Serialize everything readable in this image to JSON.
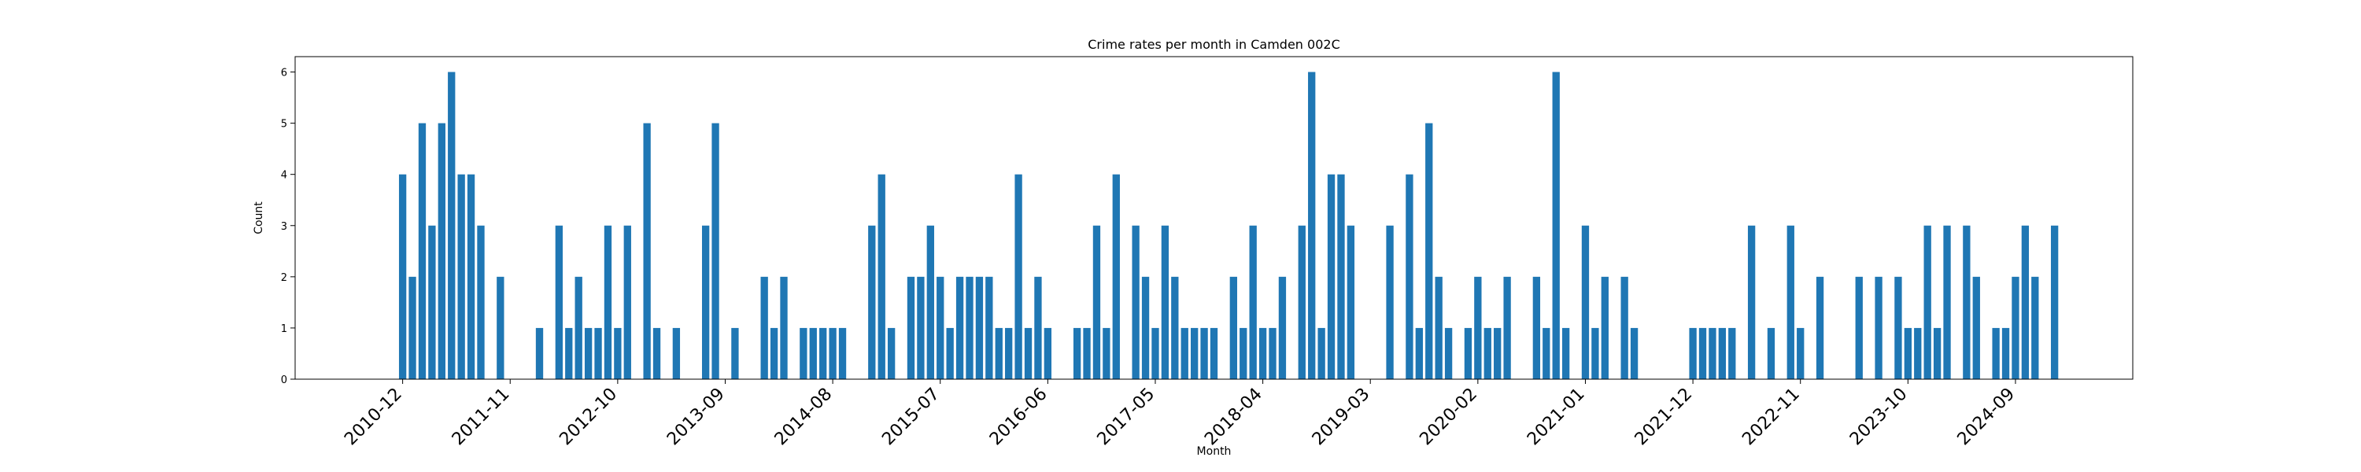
{
  "chart_data": {
    "type": "bar",
    "title": "Crime rates per month in Camden 002C",
    "xlabel": "Month",
    "ylabel": "Count",
    "ylim": [
      0,
      6.3
    ],
    "yticks": [
      0,
      1,
      2,
      3,
      4,
      5,
      6
    ],
    "xlim": [
      "2010-01",
      "2025-09"
    ],
    "xticks": [
      "2010-12",
      "2011-11",
      "2012-10",
      "2013-09",
      "2014-08",
      "2015-07",
      "2016-06",
      "2017-05",
      "2018-04",
      "2019-03",
      "2020-02",
      "2021-01",
      "2021-12",
      "2022-11",
      "2023-10",
      "2024-09"
    ],
    "grid": false,
    "bar_color": "#1f77b4",
    "points": [
      {
        "x": "2010-12",
        "y": 4
      },
      {
        "x": "2011-01",
        "y": 2
      },
      {
        "x": "2011-02",
        "y": 5
      },
      {
        "x": "2011-03",
        "y": 3
      },
      {
        "x": "2011-04",
        "y": 5
      },
      {
        "x": "2011-05",
        "y": 6
      },
      {
        "x": "2011-06",
        "y": 4
      },
      {
        "x": "2011-07",
        "y": 4
      },
      {
        "x": "2011-08",
        "y": 3
      },
      {
        "x": "2011-10",
        "y": 2
      },
      {
        "x": "2012-02",
        "y": 1
      },
      {
        "x": "2012-04",
        "y": 3
      },
      {
        "x": "2012-05",
        "y": 1
      },
      {
        "x": "2012-06",
        "y": 2
      },
      {
        "x": "2012-07",
        "y": 1
      },
      {
        "x": "2012-08",
        "y": 1
      },
      {
        "x": "2012-09",
        "y": 3
      },
      {
        "x": "2012-10",
        "y": 1
      },
      {
        "x": "2012-11",
        "y": 3
      },
      {
        "x": "2013-01",
        "y": 5
      },
      {
        "x": "2013-02",
        "y": 1
      },
      {
        "x": "2013-04",
        "y": 1
      },
      {
        "x": "2013-07",
        "y": 3
      },
      {
        "x": "2013-08",
        "y": 5
      },
      {
        "x": "2013-10",
        "y": 1
      },
      {
        "x": "2014-01",
        "y": 2
      },
      {
        "x": "2014-02",
        "y": 1
      },
      {
        "x": "2014-03",
        "y": 2
      },
      {
        "x": "2014-05",
        "y": 1
      },
      {
        "x": "2014-06",
        "y": 1
      },
      {
        "x": "2014-07",
        "y": 1
      },
      {
        "x": "2014-08",
        "y": 1
      },
      {
        "x": "2014-09",
        "y": 1
      },
      {
        "x": "2014-12",
        "y": 3
      },
      {
        "x": "2015-01",
        "y": 4
      },
      {
        "x": "2015-02",
        "y": 1
      },
      {
        "x": "2015-04",
        "y": 2
      },
      {
        "x": "2015-05",
        "y": 2
      },
      {
        "x": "2015-06",
        "y": 3
      },
      {
        "x": "2015-07",
        "y": 2
      },
      {
        "x": "2015-08",
        "y": 1
      },
      {
        "x": "2015-09",
        "y": 2
      },
      {
        "x": "2015-10",
        "y": 2
      },
      {
        "x": "2015-11",
        "y": 2
      },
      {
        "x": "2015-12",
        "y": 2
      },
      {
        "x": "2016-01",
        "y": 1
      },
      {
        "x": "2016-02",
        "y": 1
      },
      {
        "x": "2016-03",
        "y": 4
      },
      {
        "x": "2016-04",
        "y": 1
      },
      {
        "x": "2016-05",
        "y": 2
      },
      {
        "x": "2016-06",
        "y": 1
      },
      {
        "x": "2016-09",
        "y": 1
      },
      {
        "x": "2016-10",
        "y": 1
      },
      {
        "x": "2016-11",
        "y": 3
      },
      {
        "x": "2016-12",
        "y": 1
      },
      {
        "x": "2017-01",
        "y": 4
      },
      {
        "x": "2017-03",
        "y": 3
      },
      {
        "x": "2017-04",
        "y": 2
      },
      {
        "x": "2017-05",
        "y": 1
      },
      {
        "x": "2017-06",
        "y": 3
      },
      {
        "x": "2017-07",
        "y": 2
      },
      {
        "x": "2017-08",
        "y": 1
      },
      {
        "x": "2017-09",
        "y": 1
      },
      {
        "x": "2017-10",
        "y": 1
      },
      {
        "x": "2017-11",
        "y": 1
      },
      {
        "x": "2018-01",
        "y": 2
      },
      {
        "x": "2018-02",
        "y": 1
      },
      {
        "x": "2018-03",
        "y": 3
      },
      {
        "x": "2018-04",
        "y": 1
      },
      {
        "x": "2018-05",
        "y": 1
      },
      {
        "x": "2018-06",
        "y": 2
      },
      {
        "x": "2018-08",
        "y": 3
      },
      {
        "x": "2018-09",
        "y": 6
      },
      {
        "x": "2018-10",
        "y": 1
      },
      {
        "x": "2018-11",
        "y": 4
      },
      {
        "x": "2018-12",
        "y": 4
      },
      {
        "x": "2019-01",
        "y": 3
      },
      {
        "x": "2019-05",
        "y": 3
      },
      {
        "x": "2019-07",
        "y": 4
      },
      {
        "x": "2019-08",
        "y": 1
      },
      {
        "x": "2019-09",
        "y": 5
      },
      {
        "x": "2019-10",
        "y": 2
      },
      {
        "x": "2019-11",
        "y": 1
      },
      {
        "x": "2020-01",
        "y": 1
      },
      {
        "x": "2020-02",
        "y": 2
      },
      {
        "x": "2020-03",
        "y": 1
      },
      {
        "x": "2020-04",
        "y": 1
      },
      {
        "x": "2020-05",
        "y": 2
      },
      {
        "x": "2020-08",
        "y": 2
      },
      {
        "x": "2020-09",
        "y": 1
      },
      {
        "x": "2020-10",
        "y": 6
      },
      {
        "x": "2020-11",
        "y": 1
      },
      {
        "x": "2021-01",
        "y": 3
      },
      {
        "x": "2021-02",
        "y": 1
      },
      {
        "x": "2021-03",
        "y": 2
      },
      {
        "x": "2021-05",
        "y": 2
      },
      {
        "x": "2021-06",
        "y": 1
      },
      {
        "x": "2021-12",
        "y": 1
      },
      {
        "x": "2022-01",
        "y": 1
      },
      {
        "x": "2022-02",
        "y": 1
      },
      {
        "x": "2022-03",
        "y": 1
      },
      {
        "x": "2022-04",
        "y": 1
      },
      {
        "x": "2022-06",
        "y": 3
      },
      {
        "x": "2022-08",
        "y": 1
      },
      {
        "x": "2022-10",
        "y": 3
      },
      {
        "x": "2022-11",
        "y": 1
      },
      {
        "x": "2023-01",
        "y": 2
      },
      {
        "x": "2023-05",
        "y": 2
      },
      {
        "x": "2023-07",
        "y": 2
      },
      {
        "x": "2023-09",
        "y": 2
      },
      {
        "x": "2023-10",
        "y": 1
      },
      {
        "x": "2023-11",
        "y": 1
      },
      {
        "x": "2023-12",
        "y": 3
      },
      {
        "x": "2024-01",
        "y": 1
      },
      {
        "x": "2024-02",
        "y": 3
      },
      {
        "x": "2024-04",
        "y": 3
      },
      {
        "x": "2024-05",
        "y": 2
      },
      {
        "x": "2024-07",
        "y": 1
      },
      {
        "x": "2024-08",
        "y": 1
      },
      {
        "x": "2024-09",
        "y": 2
      },
      {
        "x": "2024-10",
        "y": 3
      },
      {
        "x": "2024-11",
        "y": 2
      },
      {
        "x": "2025-01",
        "y": 3
      }
    ]
  }
}
